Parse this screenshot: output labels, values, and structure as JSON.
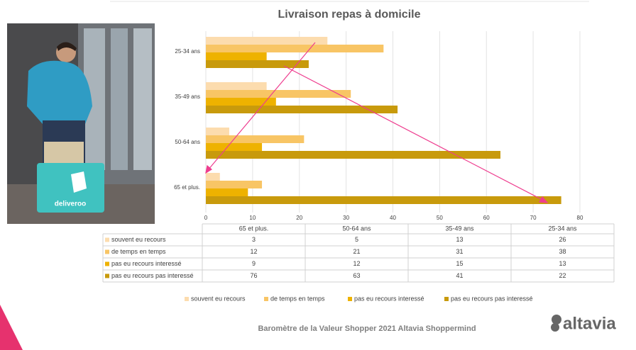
{
  "chart_data": {
    "type": "bar",
    "orientation": "horizontal",
    "title": "Livraison repas à domicile",
    "categories": [
      "65 et plus.",
      "50-64 ans",
      "35-49 ans",
      "25-34 ans"
    ],
    "series": [
      {
        "name": "souvent eu recours",
        "color": "#fcdcae",
        "values": [
          3,
          5,
          13,
          26
        ]
      },
      {
        "name": "de temps en temps",
        "color": "#f8c565",
        "values": [
          12,
          21,
          31,
          38
        ]
      },
      {
        "name": "pas eu recours interessé",
        "color": "#eeb200",
        "values": [
          9,
          12,
          15,
          13
        ]
      },
      {
        "name": "pas eu recours pas interessé",
        "color": "#c89a0c",
        "values": [
          76,
          63,
          41,
          22
        ]
      }
    ],
    "xlim": [
      0,
      80
    ],
    "xticks": [
      0,
      10,
      20,
      30,
      40,
      50,
      60,
      70,
      80
    ],
    "grid": true,
    "legend": "bottom"
  },
  "footer": "Baromètre de la Valeur Shopper 2021 Altavia Shoppermind",
  "logo": "altavia",
  "photo_text": "deliveroo"
}
